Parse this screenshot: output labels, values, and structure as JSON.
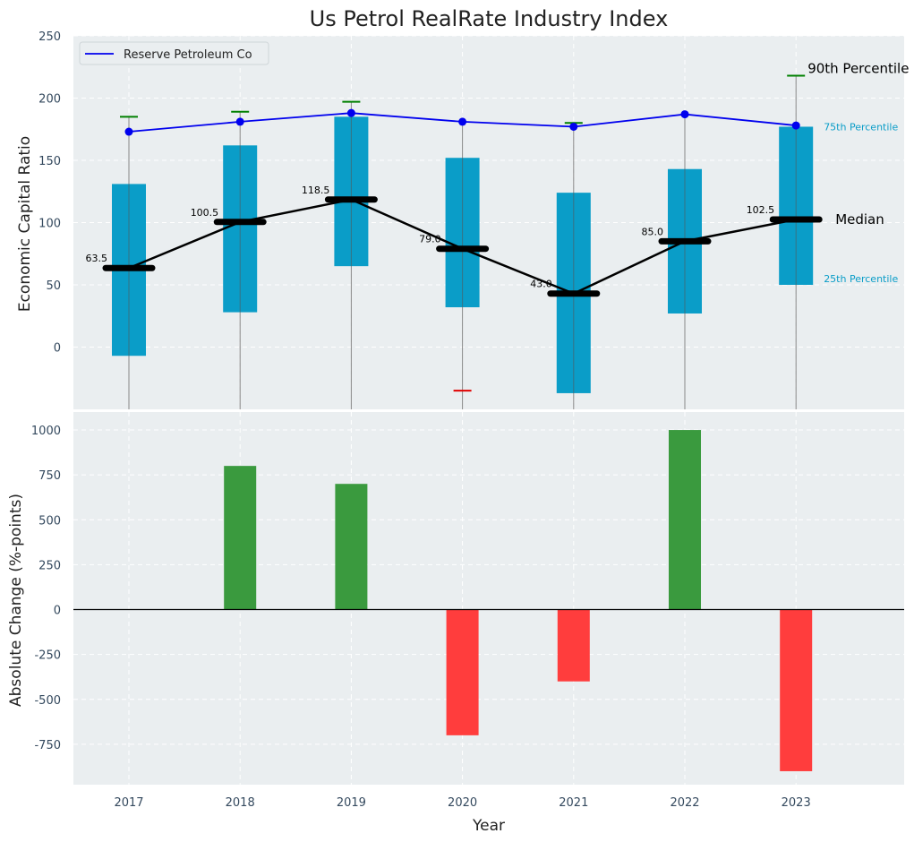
{
  "chart_data": [
    {
      "type": "box",
      "title": "Us Petrol RealRate Industry Index",
      "xlabel": "",
      "ylabel": "Economic Capital Ratio",
      "ylim": [
        -50,
        250
      ],
      "yticks": [
        0,
        50,
        100,
        150,
        200,
        250
      ],
      "grid": true,
      "legend_position": "top-left",
      "categories": [
        "2017",
        "2018",
        "2019",
        "2020",
        "2021",
        "2022",
        "2023"
      ],
      "p25": [
        -7,
        28,
        65,
        32,
        -37,
        27,
        50
      ],
      "p75": [
        131,
        162,
        185,
        152,
        124,
        143,
        177
      ],
      "median": [
        63.5,
        100.5,
        118.5,
        79.0,
        43.0,
        85.0,
        102.5
      ],
      "median_labels": [
        "63.5",
        "100.5",
        "118.5",
        "79.0",
        "43.0",
        "85.0",
        "102.5"
      ],
      "p90": [
        185,
        189,
        197,
        null,
        180,
        null,
        218
      ],
      "p10": [
        null,
        null,
        null,
        -35,
        null,
        null,
        null
      ],
      "series": [
        {
          "name": "Reserve Petroleum Co",
          "values": [
            173,
            181,
            188,
            181,
            177,
            187,
            178
          ],
          "color": "#0000ee"
        }
      ],
      "annotations": {
        "p90": "90th Percentile",
        "p75": "75th Percentile",
        "median": "Median",
        "p25": "25th Percentile"
      }
    },
    {
      "type": "bar",
      "xlabel": "Year",
      "ylabel": "Absolute Change (%-points)",
      "ylim": [
        -975,
        1100
      ],
      "yticks": [
        -750,
        -500,
        -250,
        0,
        250,
        500,
        750,
        1000
      ],
      "grid": true,
      "categories": [
        "2017",
        "2018",
        "2019",
        "2020",
        "2021",
        "2022",
        "2023"
      ],
      "values": [
        0,
        800,
        700,
        -700,
        -400,
        1000,
        -900
      ],
      "colors": {
        "positive": "#3a9a3e",
        "negative": "#ff3d3d"
      }
    }
  ],
  "colors": {
    "box": "#0a9dc8",
    "median": "#000000",
    "background": "#eaeef0",
    "p90_cap": "#008000",
    "p10_cap": "#e00000"
  }
}
